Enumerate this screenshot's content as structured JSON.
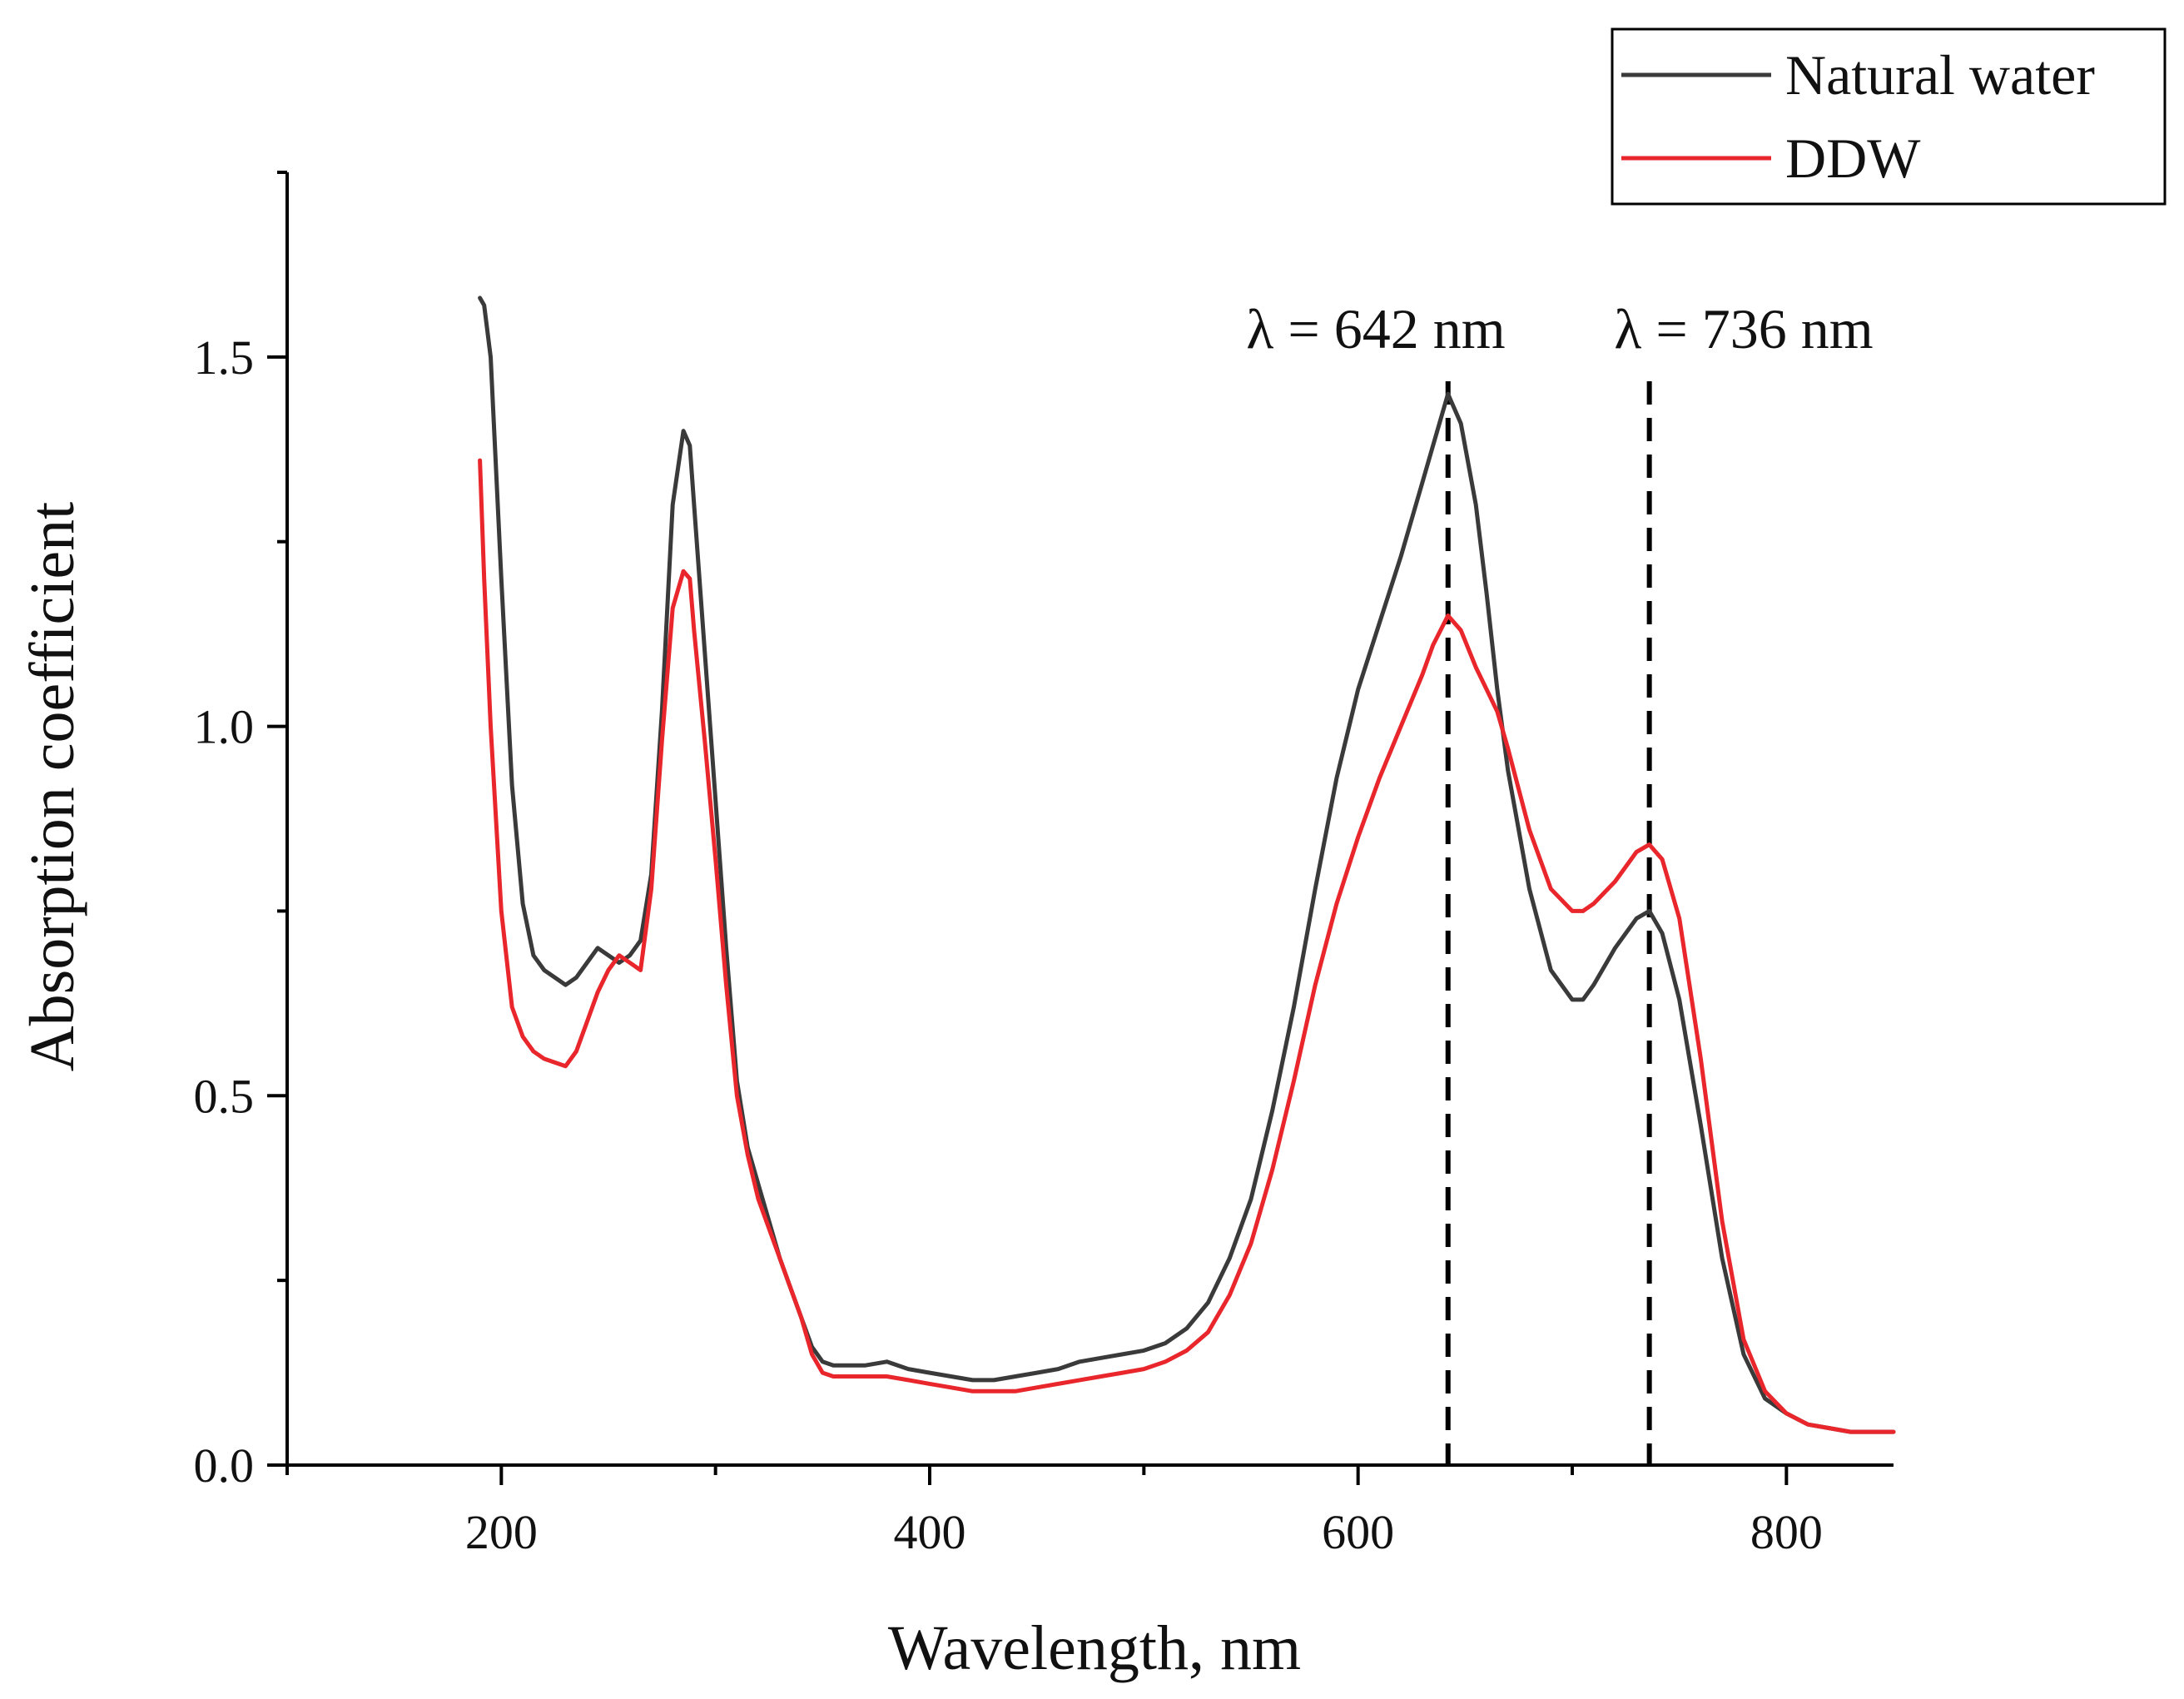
{
  "chart_data": {
    "type": "line",
    "title": "",
    "xlabel": "Wavelength, nm",
    "ylabel": "Absorption coefficient",
    "xlim": [
      100,
      850
    ],
    "ylim": [
      0,
      1.75
    ],
    "x_ticks": [
      200,
      400,
      600,
      800
    ],
    "x_tick_labels": [
      "200",
      "400",
      "600",
      "800"
    ],
    "y_ticks": [
      0,
      0.5,
      1.0,
      1.5
    ],
    "y_tick_labels": [
      "0.0",
      "0.5",
      "1.0",
      "1.5"
    ],
    "legend_position": "top-right",
    "series": [
      {
        "name": "Natural water",
        "color": "#3a3a3a",
        "x": [
          190,
          192,
          195,
          200,
          205,
          210,
          215,
          220,
          225,
          230,
          235,
          240,
          245,
          250,
          255,
          260,
          265,
          270,
          275,
          280,
          285,
          288,
          290,
          295,
          300,
          305,
          310,
          315,
          320,
          325,
          330,
          335,
          340,
          345,
          350,
          355,
          360,
          370,
          380,
          390,
          400,
          410,
          420,
          430,
          440,
          450,
          460,
          470,
          480,
          490,
          500,
          510,
          520,
          530,
          540,
          550,
          560,
          570,
          580,
          590,
          600,
          610,
          620,
          630,
          635,
          642,
          648,
          655,
          660,
          665,
          670,
          680,
          690,
          700,
          705,
          710,
          720,
          730,
          736,
          742,
          750,
          760,
          770,
          780,
          790,
          800,
          810,
          820,
          830,
          840,
          850
        ],
        "values": [
          1.58,
          1.57,
          1.5,
          1.2,
          0.92,
          0.76,
          0.69,
          0.67,
          0.66,
          0.65,
          0.66,
          0.68,
          0.7,
          0.69,
          0.68,
          0.69,
          0.71,
          0.8,
          1.02,
          1.3,
          1.4,
          1.38,
          1.3,
          1.1,
          0.9,
          0.7,
          0.52,
          0.43,
          0.38,
          0.33,
          0.28,
          0.24,
          0.2,
          0.16,
          0.14,
          0.135,
          0.135,
          0.135,
          0.14,
          0.13,
          0.125,
          0.12,
          0.115,
          0.115,
          0.12,
          0.125,
          0.13,
          0.14,
          0.145,
          0.15,
          0.155,
          0.165,
          0.185,
          0.22,
          0.28,
          0.36,
          0.48,
          0.62,
          0.78,
          0.93,
          1.05,
          1.14,
          1.23,
          1.33,
          1.38,
          1.45,
          1.41,
          1.3,
          1.18,
          1.05,
          0.94,
          0.78,
          0.67,
          0.63,
          0.63,
          0.65,
          0.7,
          0.74,
          0.75,
          0.72,
          0.63,
          0.46,
          0.28,
          0.15,
          0.09,
          0.07,
          0.055,
          0.05,
          0.045,
          0.045,
          0.045
        ]
      },
      {
        "name": "DDW",
        "color": "#e8262b",
        "x": [
          190,
          192,
          195,
          200,
          205,
          210,
          215,
          220,
          225,
          230,
          235,
          240,
          245,
          250,
          255,
          260,
          265,
          270,
          275,
          280,
          285,
          288,
          290,
          295,
          300,
          305,
          310,
          315,
          320,
          325,
          330,
          335,
          340,
          345,
          350,
          355,
          360,
          370,
          380,
          390,
          400,
          410,
          420,
          430,
          440,
          450,
          460,
          470,
          480,
          490,
          500,
          510,
          520,
          530,
          540,
          550,
          560,
          570,
          580,
          590,
          600,
          610,
          620,
          630,
          635,
          642,
          648,
          655,
          660,
          665,
          670,
          680,
          690,
          700,
          705,
          710,
          720,
          730,
          736,
          742,
          750,
          760,
          770,
          780,
          790,
          800,
          810,
          820,
          830,
          840,
          850
        ],
        "values": [
          1.36,
          1.2,
          1.0,
          0.75,
          0.62,
          0.58,
          0.56,
          0.55,
          0.545,
          0.54,
          0.56,
          0.6,
          0.64,
          0.67,
          0.69,
          0.68,
          0.67,
          0.78,
          0.98,
          1.16,
          1.21,
          1.2,
          1.13,
          0.98,
          0.82,
          0.65,
          0.5,
          0.42,
          0.36,
          0.32,
          0.28,
          0.24,
          0.2,
          0.15,
          0.125,
          0.12,
          0.12,
          0.12,
          0.12,
          0.115,
          0.11,
          0.105,
          0.1,
          0.1,
          0.1,
          0.105,
          0.11,
          0.115,
          0.12,
          0.125,
          0.13,
          0.14,
          0.155,
          0.18,
          0.23,
          0.3,
          0.4,
          0.52,
          0.65,
          0.76,
          0.85,
          0.93,
          1.0,
          1.07,
          1.11,
          1.15,
          1.13,
          1.08,
          1.05,
          1.02,
          0.97,
          0.86,
          0.78,
          0.75,
          0.75,
          0.76,
          0.79,
          0.83,
          0.84,
          0.82,
          0.74,
          0.55,
          0.33,
          0.17,
          0.1,
          0.07,
          0.055,
          0.05,
          0.045,
          0.045,
          0.045
        ]
      }
    ],
    "annotations": [
      {
        "label": "λ = 642 nm",
        "x": 642
      },
      {
        "label": "λ = 736 nm",
        "x": 736
      }
    ]
  }
}
